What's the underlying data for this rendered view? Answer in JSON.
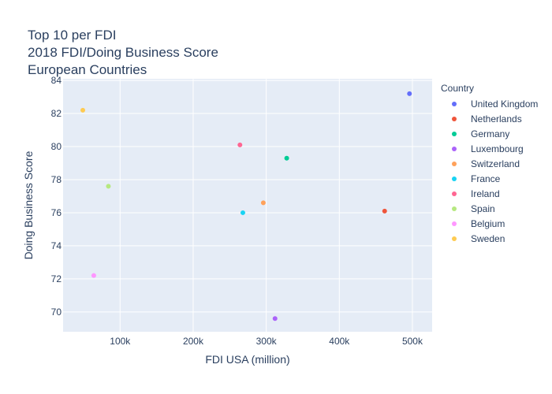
{
  "title": {
    "line1": "Top 10 per FDI",
    "line2": "2018 FDI/Doing Business Score",
    "line3": "European Countries"
  },
  "chart_data": {
    "type": "scatter",
    "title": "Top 10 per FDI\n2018 FDI/Doing Business Score\nEuropean Countries",
    "xlabel": "FDI USA (million)",
    "ylabel": "Doing Business Score",
    "xlim": [
      22000,
      527000
    ],
    "ylim": [
      68.8,
      84.1
    ],
    "xticks": [
      {
        "value": 100000,
        "label": "100k"
      },
      {
        "value": 200000,
        "label": "200k"
      },
      {
        "value": 300000,
        "label": "300k"
      },
      {
        "value": 400000,
        "label": "400k"
      },
      {
        "value": 500000,
        "label": "500k"
      }
    ],
    "yticks": [
      70,
      72,
      74,
      76,
      78,
      80,
      82,
      84
    ],
    "grid": true,
    "legend_title": "Country",
    "legend_position": "right",
    "series": [
      {
        "name": "United Kingdom",
        "color": "#636efa",
        "x": [
          496000
        ],
        "y": [
          83.2
        ]
      },
      {
        "name": "Netherlands",
        "color": "#ef553b",
        "x": [
          462000
        ],
        "y": [
          76.1
        ]
      },
      {
        "name": "Germany",
        "color": "#00cc96",
        "x": [
          328000
        ],
        "y": [
          79.3
        ]
      },
      {
        "name": "Luxembourg",
        "color": "#ab63fa",
        "x": [
          312000
        ],
        "y": [
          69.6
        ]
      },
      {
        "name": "Switzerland",
        "color": "#ffa15a",
        "x": [
          296000
        ],
        "y": [
          76.6
        ]
      },
      {
        "name": "France",
        "color": "#19d3f3",
        "x": [
          268000
        ],
        "y": [
          76.0
        ]
      },
      {
        "name": "Ireland",
        "color": "#ff6692",
        "x": [
          264000
        ],
        "y": [
          80.1
        ]
      },
      {
        "name": "Spain",
        "color": "#b6e880",
        "x": [
          84000
        ],
        "y": [
          77.6
        ]
      },
      {
        "name": "Belgium",
        "color": "#ff97ff",
        "x": [
          64000
        ],
        "y": [
          72.2
        ]
      },
      {
        "name": "Sweden",
        "color": "#fecb52",
        "x": [
          49000
        ],
        "y": [
          82.2
        ]
      }
    ]
  }
}
